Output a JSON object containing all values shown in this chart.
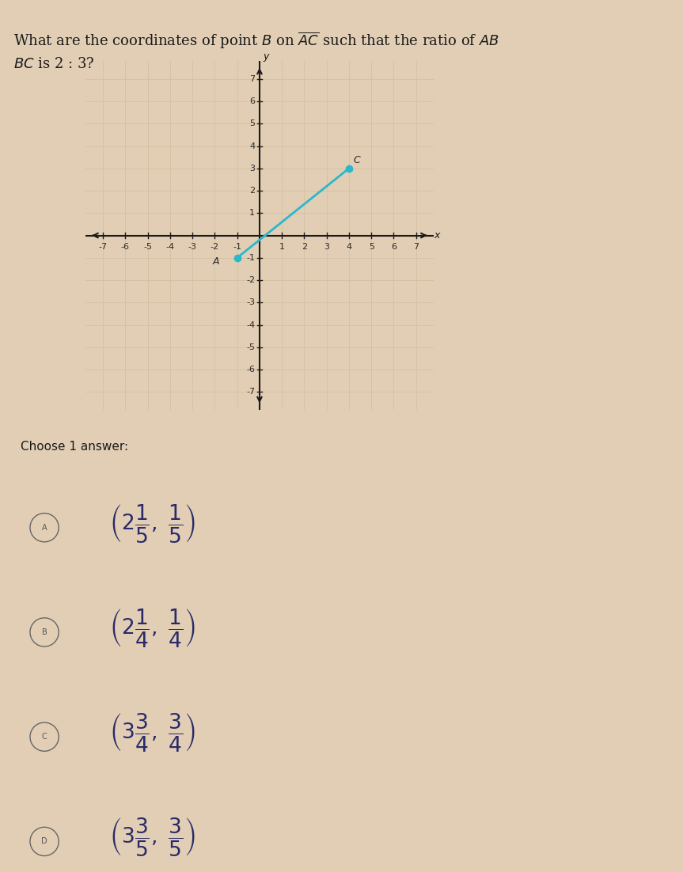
{
  "background_color": "#e2ceb4",
  "grid_color_light": "#d4c0a0",
  "grid_color_dark": "#c8b490",
  "axis_color": "#1a1a1a",
  "point_A": [
    -1,
    -1
  ],
  "point_C": [
    4,
    3
  ],
  "point_color": "#2ab8cc",
  "line_color": "#2ab8cc",
  "label_A": "A",
  "label_C": "C",
  "tick_label_color": "#2a2a2a",
  "font_size_axis": 8,
  "answers": [
    [
      "A",
      "$\\left(2\\dfrac{1}{5},\\ \\dfrac{1}{5}\\right)$"
    ],
    [
      "B",
      "$\\left(2\\dfrac{1}{4},\\ \\dfrac{1}{4}\\right)$"
    ],
    [
      "C",
      "$\\left(3\\dfrac{3}{4},\\ \\dfrac{3}{4}\\right)$"
    ],
    [
      "D",
      "$\\left(3\\dfrac{3}{5},\\ \\dfrac{3}{5}\\right)$"
    ]
  ]
}
